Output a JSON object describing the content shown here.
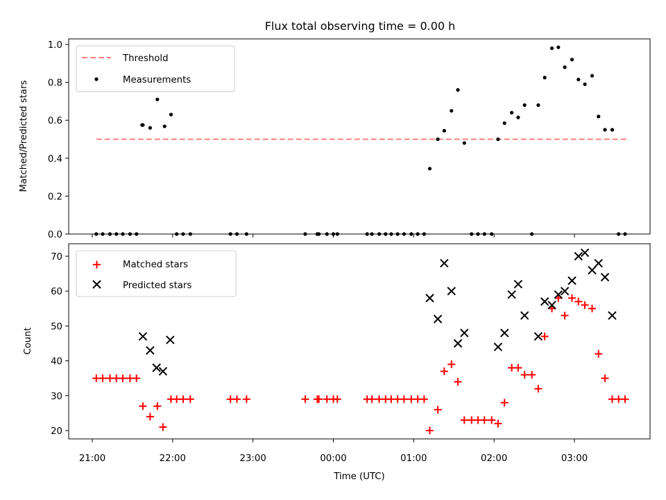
{
  "chart_data": [
    {
      "type": "scatter",
      "title": "Flux total observing time = 0.00 h",
      "ylabel": "Matched/Predicted stars",
      "xlabel": "",
      "ylim": [
        0,
        1.03
      ],
      "yticks": [
        "0.0",
        "0.2",
        "0.4",
        "0.6",
        "0.8",
        "1.0"
      ],
      "grid": false,
      "legend": {
        "placement": "top-left",
        "entries": [
          "Threshold",
          "Measurements"
        ]
      },
      "threshold": {
        "name": "Threshold",
        "y": 0.5,
        "x_start": 21.05,
        "x_end": 27.65,
        "color": "#ff7f7f"
      },
      "series": [
        {
          "name": "Measurements",
          "color": "#000000",
          "x": [
            21.05,
            21.13,
            21.22,
            21.3,
            21.38,
            21.47,
            21.55,
            21.63,
            21.62,
            21.72,
            21.81,
            21.9,
            21.98,
            22.05,
            22.13,
            22.22,
            22.72,
            22.8,
            22.92,
            23.65,
            23.8,
            23.82,
            23.92,
            24.0,
            24.05,
            24.42,
            24.48,
            24.57,
            24.65,
            24.72,
            24.8,
            24.88,
            24.97,
            25.05,
            25.13,
            25.2,
            25.3,
            25.38,
            25.47,
            25.55,
            25.63,
            25.72,
            25.8,
            25.88,
            25.97,
            26.05,
            26.13,
            26.22,
            26.3,
            26.38,
            26.47,
            26.55,
            26.63,
            26.72,
            26.8,
            26.88,
            26.97,
            27.05,
            27.13,
            27.22,
            27.3,
            27.38,
            27.47,
            27.55,
            27.63
          ],
          "y": [
            0,
            0,
            0,
            0,
            0,
            0,
            0,
            0.575,
            0.575,
            0.56,
            0.71,
            0.568,
            0.63,
            0,
            0,
            0,
            0,
            0,
            0,
            0,
            0,
            0,
            0,
            0,
            0,
            0,
            0,
            0,
            0,
            0,
            0,
            0,
            0,
            0,
            0,
            0.345,
            0.5,
            0.545,
            0.65,
            0.76,
            0.48,
            0,
            0,
            0,
            0,
            0.5,
            0.585,
            0.64,
            0.615,
            0.68,
            0,
            0.68,
            0.825,
            0.98,
            0.985,
            0.88,
            0.92,
            0.815,
            0.79,
            0.835,
            0.62,
            0.55,
            0.55,
            0,
            0
          ]
        }
      ]
    },
    {
      "type": "scatter",
      "title": "",
      "ylabel": "Count",
      "xlabel": "Time (UTC)",
      "ylim": [
        17.5,
        73.5
      ],
      "yticks": [
        "20",
        "30",
        "40",
        "50",
        "60",
        "70"
      ],
      "xticks": [
        "21:00",
        "22:00",
        "23:00",
        "00:00",
        "01:00",
        "02:00",
        "03:00"
      ],
      "grid": false,
      "legend": {
        "placement": "top-left",
        "entries": [
          "Matched stars",
          "Predicted stars"
        ]
      },
      "series": [
        {
          "name": "Matched stars",
          "marker": "plus",
          "color": "#ff0000",
          "x": [
            21.05,
            21.13,
            21.22,
            21.3,
            21.38,
            21.47,
            21.55,
            21.63,
            21.72,
            21.81,
            21.88,
            21.98,
            22.05,
            22.13,
            22.22,
            22.72,
            22.8,
            22.92,
            23.65,
            23.8,
            23.82,
            23.92,
            24.0,
            24.05,
            24.42,
            24.48,
            24.57,
            24.65,
            24.72,
            24.8,
            24.88,
            24.97,
            25.05,
            25.13,
            25.2,
            25.3,
            25.38,
            25.47,
            25.55,
            25.63,
            25.72,
            25.8,
            25.88,
            25.97,
            26.05,
            26.13,
            26.22,
            26.3,
            26.38,
            26.47,
            26.55,
            26.63,
            26.72,
            26.8,
            26.88,
            26.97,
            27.05,
            27.13,
            27.22,
            27.3,
            27.38,
            27.47,
            27.55,
            27.63
          ],
          "y": [
            35,
            35,
            35,
            35,
            35,
            35,
            35,
            27,
            24,
            27,
            21,
            29,
            29,
            29,
            29,
            29,
            29,
            29,
            29,
            29,
            29,
            29,
            29,
            29,
            29,
            29,
            29,
            29,
            29,
            29,
            29,
            29,
            29,
            29,
            20,
            26,
            37,
            39,
            34,
            23,
            23,
            23,
            23,
            23,
            22,
            28,
            38,
            38,
            36,
            36,
            32,
            47,
            55,
            58,
            53,
            58,
            57,
            56,
            55,
            42,
            35,
            29,
            29,
            29
          ]
        },
        {
          "name": "Predicted stars",
          "marker": "x",
          "color": "#000000",
          "x": [
            21.63,
            21.72,
            21.8,
            21.88,
            21.97,
            25.2,
            25.3,
            25.38,
            25.47,
            25.55,
            25.63,
            26.05,
            26.13,
            26.22,
            26.3,
            26.38,
            26.55,
            26.63,
            26.72,
            26.8,
            26.88,
            26.97,
            27.05,
            27.13,
            27.22,
            27.3,
            27.38,
            27.47
          ],
          "y": [
            47,
            43,
            38,
            37,
            46,
            58,
            52,
            68,
            60,
            45,
            48,
            44,
            48,
            59,
            62,
            53,
            47,
            57,
            56,
            59,
            60,
            63,
            70,
            71,
            66,
            68,
            64,
            53
          ]
        }
      ]
    }
  ]
}
